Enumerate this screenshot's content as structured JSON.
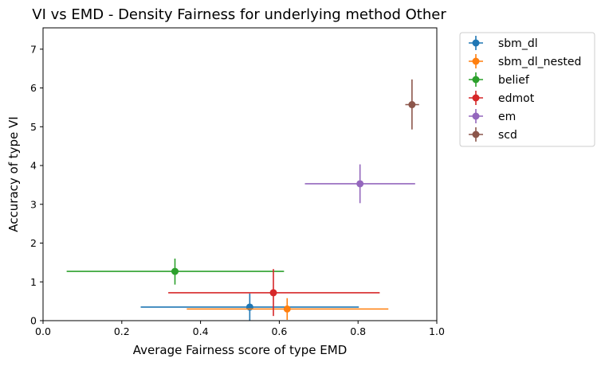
{
  "chart_data": {
    "type": "scatter",
    "title": "VI vs EMD - Density Fairness for underlying method Other",
    "xlabel": "Average Fairness score of type EMD",
    "ylabel": "Accuracy of type VI",
    "xlim": [
      0.0,
      1.0
    ],
    "ylim": [
      0,
      7.55
    ],
    "xticks": [
      "0.0",
      "0.2",
      "0.4",
      "0.6",
      "0.8",
      "1.0"
    ],
    "yticks": [
      "0",
      "1",
      "2",
      "3",
      "4",
      "5",
      "6",
      "7"
    ],
    "legend_position": "outside-top-right",
    "grid": false,
    "series": [
      {
        "name": "sbm_dl",
        "color": "#1f77b4",
        "x": 0.525,
        "y": 0.35,
        "xerr": [
          0.248,
          0.802
        ],
        "yerr": [
          0.0,
          0.7
        ]
      },
      {
        "name": "sbm_dl_nested",
        "color": "#ff7f0e",
        "x": 0.62,
        "y": 0.3,
        "xerr": [
          0.365,
          0.877
        ],
        "yerr": [
          0.02,
          0.58
        ]
      },
      {
        "name": "belief",
        "color": "#2ca02c",
        "x": 0.335,
        "y": 1.27,
        "xerr": [
          0.06,
          0.612
        ],
        "yerr": [
          0.93,
          1.6
        ]
      },
      {
        "name": "edmot",
        "color": "#d62728",
        "x": 0.585,
        "y": 0.72,
        "xerr": [
          0.318,
          0.855
        ],
        "yerr": [
          0.12,
          1.33
        ]
      },
      {
        "name": "em",
        "color": "#9467bd",
        "x": 0.805,
        "y": 3.53,
        "xerr": [
          0.665,
          0.945
        ],
        "yerr": [
          3.03,
          4.03
        ]
      },
      {
        "name": "scd",
        "color": "#8c564b",
        "x": 0.937,
        "y": 5.57,
        "xerr": [
          0.92,
          0.955
        ],
        "yerr": [
          4.93,
          6.22
        ]
      }
    ]
  }
}
